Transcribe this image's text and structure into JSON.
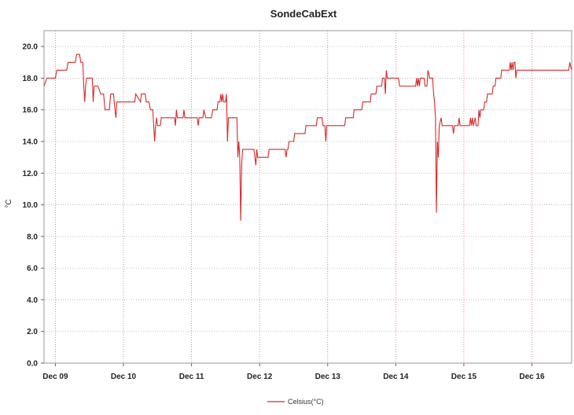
{
  "chart_data": {
    "type": "line",
    "title": "SondeCabExt",
    "xlabel": "",
    "ylabel": "°C",
    "ylim": [
      0,
      21
    ],
    "yticks": [
      "0.0",
      "2.0",
      "4.0",
      "6.0",
      "8.0",
      "10.0",
      "12.0",
      "14.0",
      "16.0",
      "18.0",
      "20.0"
    ],
    "xlim": [
      "Dec 08 20:00",
      "Dec 16 14:00"
    ],
    "xticks": [
      "Dec 09",
      "Dec 10",
      "Dec 11",
      "Dec 12",
      "Dec 13",
      "Dec 14",
      "Dec 15",
      "Dec 16"
    ],
    "grid": true,
    "legend_position": "bottom-center",
    "series": [
      {
        "name": "Celsius(°C)",
        "color": "#d42a2a",
        "points": [
          [
            "Dec 08 20:00",
            17.5
          ],
          [
            "Dec 08 21:00",
            18.0
          ],
          [
            "Dec 09 00:00",
            18.0
          ],
          [
            "Dec 09 00:30",
            18.5
          ],
          [
            "Dec 09 04:00",
            18.5
          ],
          [
            "Dec 09 04:30",
            19.0
          ],
          [
            "Dec 09 07:00",
            19.0
          ],
          [
            "Dec 09 07:30",
            19.5
          ],
          [
            "Dec 09 08:30",
            19.5
          ],
          [
            "Dec 09 09:00",
            19.0
          ],
          [
            "Dec 09 09:40",
            19.0
          ],
          [
            "Dec 09 10:00",
            17.5
          ],
          [
            "Dec 09 10:20",
            16.5
          ],
          [
            "Dec 09 10:40",
            17.5
          ],
          [
            "Dec 09 11:00",
            18.0
          ],
          [
            "Dec 09 13:00",
            18.0
          ],
          [
            "Dec 09 13:20",
            16.5
          ],
          [
            "Dec 09 13:40",
            17.5
          ],
          [
            "Dec 09 15:00",
            17.5
          ],
          [
            "Dec 09 16:00",
            17.0
          ],
          [
            "Dec 09 17:00",
            17.0
          ],
          [
            "Dec 09 17:30",
            16.0
          ],
          [
            "Dec 09 19:00",
            16.0
          ],
          [
            "Dec 09 19:30",
            17.0
          ],
          [
            "Dec 09 20:30",
            17.0
          ],
          [
            "Dec 09 21:00",
            16.0
          ],
          [
            "Dec 09 21:20",
            15.5
          ],
          [
            "Dec 09 21:40",
            16.5
          ],
          [
            "Dec 10 04:00",
            16.5
          ],
          [
            "Dec 10 04:20",
            17.0
          ],
          [
            "Dec 10 06:00",
            16.5
          ],
          [
            "Dec 10 06:20",
            17.0
          ],
          [
            "Dec 10 07:40",
            17.0
          ],
          [
            "Dec 10 08:00",
            16.5
          ],
          [
            "Dec 10 09:00",
            16.5
          ],
          [
            "Dec 10 09:30",
            16.0
          ],
          [
            "Dec 10 10:20",
            16.0
          ],
          [
            "Dec 10 10:40",
            15.0
          ],
          [
            "Dec 10 11:00",
            14.0
          ],
          [
            "Dec 10 11:20",
            15.0
          ],
          [
            "Dec 10 11:40",
            15.5
          ],
          [
            "Dec 10 12:00",
            15.0
          ],
          [
            "Dec 10 13:00",
            15.0
          ],
          [
            "Dec 10 13:20",
            15.5
          ],
          [
            "Dec 10 18:00",
            15.5
          ],
          [
            "Dec 10 18:20",
            15.0
          ],
          [
            "Dec 10 18:40",
            16.0
          ],
          [
            "Dec 10 19:00",
            15.5
          ],
          [
            "Dec 10 21:00",
            15.5
          ],
          [
            "Dec 10 21:20",
            16.0
          ],
          [
            "Dec 10 21:40",
            15.5
          ],
          [
            "Dec 11 02:00",
            15.5
          ],
          [
            "Dec 11 02:20",
            15.0
          ],
          [
            "Dec 11 02:40",
            15.5
          ],
          [
            "Dec 11 04:00",
            15.5
          ],
          [
            "Dec 11 04:20",
            16.0
          ],
          [
            "Dec 11 05:00",
            15.5
          ],
          [
            "Dec 11 07:00",
            15.5
          ],
          [
            "Dec 11 07:30",
            16.0
          ],
          [
            "Dec 11 09:00",
            16.0
          ],
          [
            "Dec 11 09:20",
            16.5
          ],
          [
            "Dec 11 10:00",
            16.5
          ],
          [
            "Dec 11 10:20",
            17.0
          ],
          [
            "Dec 11 10:40",
            16.5
          ],
          [
            "Dec 11 11:00",
            17.0
          ],
          [
            "Dec 11 11:20",
            16.5
          ],
          [
            "Dec 11 12:00",
            16.5
          ],
          [
            "Dec 11 12:20",
            17.0
          ],
          [
            "Dec 11 12:40",
            14.0
          ],
          [
            "Dec 11 13:00",
            15.5
          ],
          [
            "Dec 11 16:00",
            15.5
          ],
          [
            "Dec 11 16:20",
            13.0
          ],
          [
            "Dec 11 16:40",
            14.0
          ],
          [
            "Dec 11 17:00",
            13.0
          ],
          [
            "Dec 11 17:20",
            9.0
          ],
          [
            "Dec 11 17:40",
            12.5
          ],
          [
            "Dec 11 18:00",
            13.5
          ],
          [
            "Dec 11 22:00",
            13.5
          ],
          [
            "Dec 11 22:20",
            13.0
          ],
          [
            "Dec 11 22:40",
            12.5
          ],
          [
            "Dec 11 23:00",
            13.5
          ],
          [
            "Dec 11 23:20",
            13.0
          ],
          [
            "Dec 12 03:00",
            13.0
          ],
          [
            "Dec 12 03:20",
            13.5
          ],
          [
            "Dec 12 09:00",
            13.5
          ],
          [
            "Dec 12 09:20",
            13.0
          ],
          [
            "Dec 12 09:40",
            13.5
          ],
          [
            "Dec 12 10:00",
            13.5
          ],
          [
            "Dec 12 10:20",
            14.0
          ],
          [
            "Dec 12 12:00",
            14.0
          ],
          [
            "Dec 12 12:20",
            14.5
          ],
          [
            "Dec 12 16:00",
            14.5
          ],
          [
            "Dec 12 16:20",
            15.0
          ],
          [
            "Dec 12 20:00",
            15.0
          ],
          [
            "Dec 12 20:20",
            15.5
          ],
          [
            "Dec 12 22:00",
            15.5
          ],
          [
            "Dec 12 22:20",
            15.0
          ],
          [
            "Dec 12 23:00",
            15.0
          ],
          [
            "Dec 12 23:20",
            14.0
          ],
          [
            "Dec 12 23:40",
            15.0
          ],
          [
            "Dec 13 06:00",
            15.0
          ],
          [
            "Dec 13 06:20",
            15.5
          ],
          [
            "Dec 13 09:00",
            15.5
          ],
          [
            "Dec 13 09:20",
            16.0
          ],
          [
            "Dec 13 12:00",
            16.0
          ],
          [
            "Dec 13 12:20",
            16.5
          ],
          [
            "Dec 13 15:00",
            16.5
          ],
          [
            "Dec 13 15:20",
            17.0
          ],
          [
            "Dec 13 17:00",
            17.0
          ],
          [
            "Dec 13 17:20",
            17.5
          ],
          [
            "Dec 13 19:00",
            17.5
          ],
          [
            "Dec 13 19:20",
            18.0
          ],
          [
            "Dec 13 20:00",
            18.0
          ],
          [
            "Dec 13 20:20",
            17.0
          ],
          [
            "Dec 13 20:40",
            18.5
          ],
          [
            "Dec 13 21:00",
            18.0
          ],
          [
            "Dec 14 01:00",
            18.0
          ],
          [
            "Dec 14 01:20",
            17.5
          ],
          [
            "Dec 14 07:00",
            17.5
          ],
          [
            "Dec 14 07:20",
            18.0
          ],
          [
            "Dec 14 07:40",
            17.5
          ],
          [
            "Dec 14 08:00",
            18.0
          ],
          [
            "Dec 14 08:20",
            17.5
          ],
          [
            "Dec 14 08:40",
            18.0
          ],
          [
            "Dec 14 10:00",
            18.0
          ],
          [
            "Dec 14 10:20",
            17.5
          ],
          [
            "Dec 14 11:00",
            17.5
          ],
          [
            "Dec 14 11:20",
            18.5
          ],
          [
            "Dec 14 12:00",
            18.0
          ],
          [
            "Dec 14 13:00",
            18.0
          ],
          [
            "Dec 14 13:20",
            17.0
          ],
          [
            "Dec 14 13:40",
            16.5
          ],
          [
            "Dec 14 14:00",
            15.5
          ],
          [
            "Dec 14 14:20",
            9.5
          ],
          [
            "Dec 14 14:40",
            14.0
          ],
          [
            "Dec 14 15:00",
            13.0
          ],
          [
            "Dec 14 15:20",
            15.0
          ],
          [
            "Dec 14 16:00",
            15.5
          ],
          [
            "Dec 14 16:20",
            15.0
          ],
          [
            "Dec 14 20:00",
            15.0
          ],
          [
            "Dec 14 20:20",
            14.5
          ],
          [
            "Dec 14 20:40",
            15.0
          ],
          [
            "Dec 14 22:00",
            15.0
          ],
          [
            "Dec 14 22:20",
            15.5
          ],
          [
            "Dec 14 22:40",
            15.0
          ],
          [
            "Dec 15 02:00",
            15.0
          ],
          [
            "Dec 15 02:20",
            15.5
          ],
          [
            "Dec 15 02:40",
            15.0
          ],
          [
            "Dec 15 03:00",
            15.5
          ],
          [
            "Dec 15 03:20",
            15.0
          ],
          [
            "Dec 15 04:00",
            15.5
          ],
          [
            "Dec 15 04:20",
            15.0
          ],
          [
            "Dec 15 05:00",
            15.0
          ],
          [
            "Dec 15 05:20",
            16.0
          ],
          [
            "Dec 15 05:40",
            15.5
          ],
          [
            "Dec 15 06:00",
            16.0
          ],
          [
            "Dec 15 07:00",
            16.0
          ],
          [
            "Dec 15 07:20",
            16.5
          ],
          [
            "Dec 15 08:00",
            16.5
          ],
          [
            "Dec 15 08:20",
            17.0
          ],
          [
            "Dec 15 10:00",
            17.0
          ],
          [
            "Dec 15 10:20",
            17.5
          ],
          [
            "Dec 15 11:00",
            17.5
          ],
          [
            "Dec 15 11:20",
            18.0
          ],
          [
            "Dec 15 13:00",
            18.0
          ],
          [
            "Dec 15 13:20",
            18.5
          ],
          [
            "Dec 15 16:00",
            18.5
          ],
          [
            "Dec 15 16:20",
            19.0
          ],
          [
            "Dec 15 16:40",
            18.5
          ],
          [
            "Dec 15 17:00",
            19.0
          ],
          [
            "Dec 15 17:20",
            18.5
          ],
          [
            "Dec 15 17:40",
            19.0
          ],
          [
            "Dec 15 18:00",
            19.0
          ],
          [
            "Dec 15 18:20",
            18.0
          ],
          [
            "Dec 15 18:40",
            18.5
          ],
          [
            "Dec 16 13:00",
            18.5
          ],
          [
            "Dec 16 13:20",
            19.0
          ],
          [
            "Dec 16 14:00",
            18.5
          ]
        ]
      }
    ]
  }
}
